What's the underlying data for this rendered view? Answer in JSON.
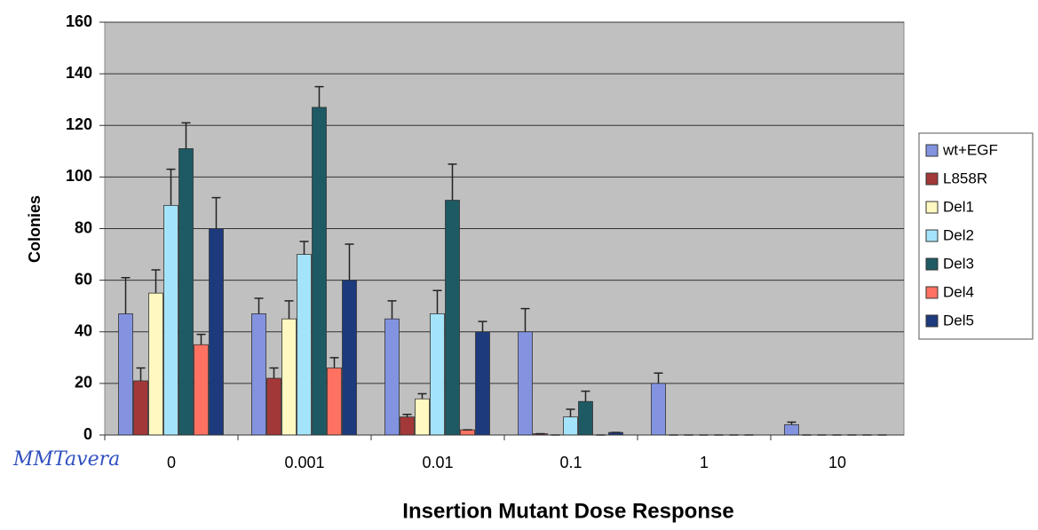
{
  "chart_data": {
    "type": "bar",
    "title": "Insertion Mutant Dose Response",
    "y_label": "Colonies",
    "annotation": "MMTavera",
    "categories": [
      "0",
      "0.001",
      "0.01",
      "0.1",
      "1",
      "10"
    ],
    "series": [
      {
        "name": "wt+EGF",
        "color": "#8393e0",
        "values": [
          47,
          47,
          45,
          40,
          20,
          4
        ],
        "errors": [
          14,
          6,
          7,
          9,
          4,
          1
        ]
      },
      {
        "name": "L858R",
        "color": "#a33838",
        "values": [
          21,
          22,
          7,
          0.5,
          0,
          0
        ],
        "errors": [
          5,
          4,
          1,
          0,
          0,
          0
        ]
      },
      {
        "name": "Del1",
        "color": "#fff8c0",
        "values": [
          55,
          45,
          14,
          0,
          0,
          0
        ],
        "errors": [
          9,
          7,
          2,
          0,
          0,
          0
        ]
      },
      {
        "name": "Del2",
        "color": "#a4e4fa",
        "values": [
          89,
          70,
          47,
          7,
          0,
          0
        ],
        "errors": [
          14,
          5,
          9,
          3,
          0,
          0
        ]
      },
      {
        "name": "Del3",
        "color": "#1e5a64",
        "values": [
          111,
          127,
          91,
          13,
          0,
          0
        ],
        "errors": [
          10,
          8,
          14,
          4,
          0,
          0
        ]
      },
      {
        "name": "Del4",
        "color": "#ff7262",
        "values": [
          35,
          26,
          2,
          0,
          0,
          0
        ],
        "errors": [
          4,
          4,
          0,
          0,
          0,
          0
        ]
      },
      {
        "name": "Del5",
        "color": "#1c3a7c",
        "values": [
          80,
          60,
          40,
          1,
          0,
          0
        ],
        "errors": [
          12,
          14,
          4,
          0,
          0,
          0
        ]
      }
    ],
    "ylim": [
      0,
      160
    ],
    "yticks": [
      0,
      20,
      40,
      60,
      80,
      100,
      120,
      140,
      160
    ],
    "grid": true,
    "legend": "right"
  }
}
